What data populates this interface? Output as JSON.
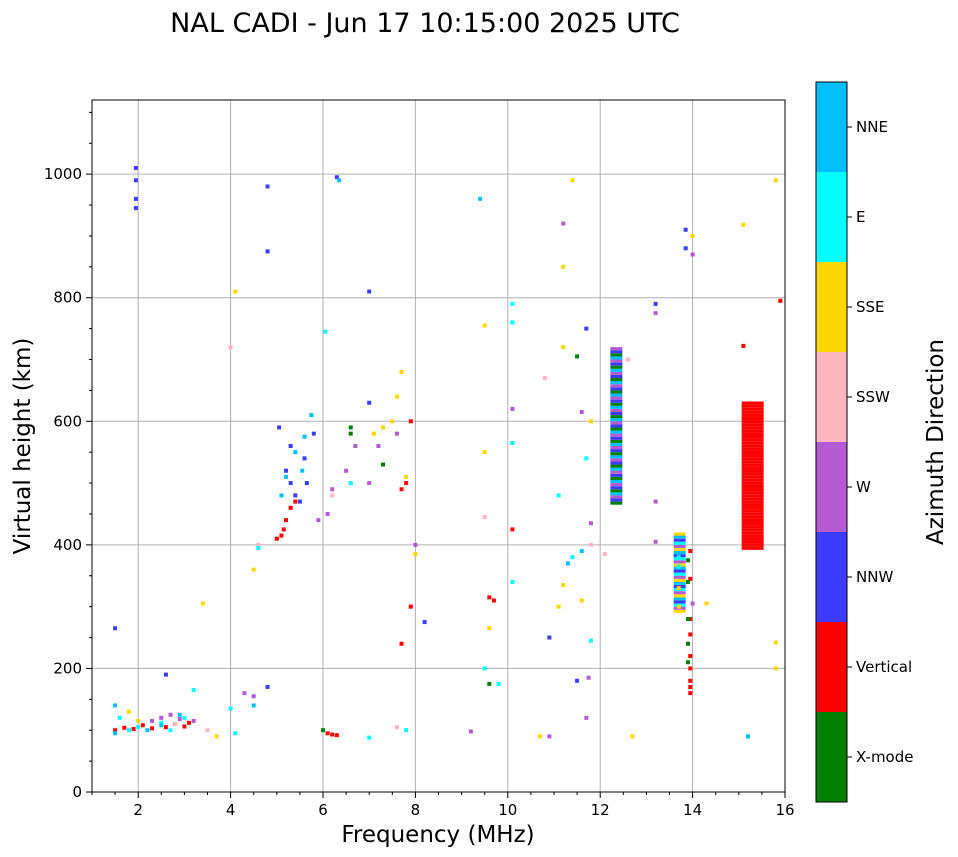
{
  "chart_data": {
    "type": "scatter",
    "title": "NAL CADI - Jun 17 10:15:00 2025 UTC",
    "xlabel": "Frequency (MHz)",
    "ylabel": "Virtual height (km)",
    "xlim": [
      1,
      16
    ],
    "ylim": [
      0,
      1120
    ],
    "xticks": [
      2,
      4,
      6,
      8,
      10,
      12,
      14,
      16
    ],
    "yticks": [
      0,
      200,
      400,
      600,
      800,
      1000
    ],
    "grid": true,
    "colorbar": {
      "label": "Azimuth Direction",
      "categories": [
        {
          "name": "X-mode",
          "color": "#008000"
        },
        {
          "name": "Vertical",
          "color": "#ff0000"
        },
        {
          "name": "NNW",
          "color": "#3c3cff"
        },
        {
          "name": "W",
          "color": "#b45ad2"
        },
        {
          "name": "SSW",
          "color": "#ffb6c1"
        },
        {
          "name": "SSE",
          "color": "#ffd700"
        },
        {
          "name": "E",
          "color": "#00ffff"
        },
        {
          "name": "NNE",
          "color": "#00bfff"
        }
      ]
    },
    "series": [
      {
        "name": "Vertical",
        "color": "#ff0000",
        "points": [
          [
            1.5,
            100
          ],
          [
            1.7,
            104
          ],
          [
            1.9,
            102
          ],
          [
            2.1,
            108
          ],
          [
            2.3,
            103
          ],
          [
            2.6,
            105
          ],
          [
            2.8,
            110
          ],
          [
            3.0,
            106
          ],
          [
            3.1,
            112
          ],
          [
            5.0,
            410
          ],
          [
            5.1,
            415
          ],
          [
            5.15,
            425
          ],
          [
            5.2,
            440
          ],
          [
            5.3,
            460
          ],
          [
            5.4,
            470
          ],
          [
            6.1,
            95
          ],
          [
            6.2,
            93
          ],
          [
            6.3,
            92
          ],
          [
            7.7,
            490
          ],
          [
            7.8,
            500
          ],
          [
            7.9,
            600
          ],
          [
            7.9,
            300
          ],
          [
            7.7,
            240
          ],
          [
            9.6,
            315
          ],
          [
            9.7,
            310
          ],
          [
            10.1,
            425
          ],
          [
            13.95,
            390
          ],
          [
            13.95,
            345
          ],
          [
            13.95,
            280
          ],
          [
            13.95,
            255
          ],
          [
            13.95,
            220
          ],
          [
            13.95,
            200
          ],
          [
            13.95,
            180
          ],
          [
            13.95,
            170
          ],
          [
            13.95,
            160
          ],
          [
            15.1,
            722
          ],
          [
            15.9,
            795
          ]
        ]
      },
      {
        "name": "X-mode",
        "color": "#008000",
        "points": [
          [
            6.0,
            100
          ],
          [
            6.6,
            590
          ],
          [
            6.6,
            580
          ],
          [
            7.3,
            530
          ],
          [
            9.6,
            175
          ],
          [
            11.5,
            705
          ],
          [
            13.9,
            375
          ],
          [
            13.9,
            340
          ],
          [
            13.9,
            280
          ],
          [
            13.9,
            240
          ],
          [
            13.9,
            210
          ]
        ]
      },
      {
        "name": "NNW",
        "color": "#3c3cff",
        "points": [
          [
            1.95,
            1010
          ],
          [
            1.95,
            990
          ],
          [
            1.95,
            960
          ],
          [
            1.95,
            945
          ],
          [
            1.5,
            265
          ],
          [
            2.6,
            190
          ],
          [
            4.8,
            170
          ],
          [
            4.8,
            980
          ],
          [
            4.8,
            875
          ],
          [
            5.05,
            590
          ],
          [
            5.3,
            560
          ],
          [
            5.2,
            520
          ],
          [
            5.3,
            500
          ],
          [
            5.4,
            480
          ],
          [
            5.5,
            470
          ],
          [
            5.65,
            500
          ],
          [
            5.6,
            540
          ],
          [
            5.8,
            580
          ],
          [
            6.3,
            995
          ],
          [
            7.0,
            630
          ],
          [
            7.0,
            810
          ],
          [
            8.2,
            275
          ],
          [
            10.9,
            250
          ],
          [
            11.5,
            180
          ],
          [
            11.7,
            750
          ],
          [
            13.85,
            910
          ],
          [
            13.85,
            880
          ],
          [
            13.2,
            790
          ]
        ]
      },
      {
        "name": "W",
        "color": "#b45ad2",
        "points": [
          [
            2.3,
            115
          ],
          [
            2.5,
            120
          ],
          [
            2.7,
            125
          ],
          [
            2.9,
            118
          ],
          [
            3.2,
            115
          ],
          [
            4.3,
            160
          ],
          [
            4.5,
            155
          ],
          [
            5.9,
            440
          ],
          [
            6.1,
            450
          ],
          [
            6.2,
            490
          ],
          [
            6.5,
            520
          ],
          [
            6.7,
            560
          ],
          [
            7.0,
            500
          ],
          [
            7.2,
            560
          ],
          [
            7.6,
            580
          ],
          [
            8.0,
            400
          ],
          [
            9.2,
            98
          ],
          [
            10.1,
            620
          ],
          [
            10.9,
            90
          ],
          [
            11.2,
            920
          ],
          [
            11.6,
            615
          ],
          [
            11.75,
            185
          ],
          [
            11.7,
            120
          ],
          [
            11.8,
            435
          ],
          [
            13.2,
            470
          ],
          [
            13.2,
            405
          ],
          [
            13.2,
            775
          ],
          [
            14.0,
            870
          ],
          [
            14.0,
            305
          ]
        ]
      },
      {
        "name": "SSW",
        "color": "#ffb6c1",
        "points": [
          [
            2.8,
            110
          ],
          [
            3.5,
            100
          ],
          [
            4.0,
            720
          ],
          [
            4.6,
            400
          ],
          [
            6.2,
            480
          ],
          [
            7.6,
            105
          ],
          [
            9.5,
            445
          ],
          [
            10.8,
            670
          ],
          [
            11.8,
            400
          ],
          [
            12.1,
            385
          ],
          [
            12.6,
            700
          ]
        ]
      },
      {
        "name": "SSE",
        "color": "#ffd700",
        "points": [
          [
            1.8,
            130
          ],
          [
            2.0,
            115
          ],
          [
            3.4,
            305
          ],
          [
            3.7,
            90
          ],
          [
            4.1,
            810
          ],
          [
            4.5,
            360
          ],
          [
            7.1,
            580
          ],
          [
            7.3,
            590
          ],
          [
            7.5,
            600
          ],
          [
            7.6,
            640
          ],
          [
            7.8,
            510
          ],
          [
            7.7,
            680
          ],
          [
            8.0,
            385
          ],
          [
            9.5,
            550
          ],
          [
            9.5,
            755
          ],
          [
            9.6,
            265
          ],
          [
            10.7,
            90
          ],
          [
            11.1,
            300
          ],
          [
            11.2,
            335
          ],
          [
            11.2,
            720
          ],
          [
            11.2,
            850
          ],
          [
            11.4,
            990
          ],
          [
            11.6,
            310
          ],
          [
            11.8,
            600
          ],
          [
            12.7,
            90
          ],
          [
            13.7,
            300
          ],
          [
            13.7,
            330
          ],
          [
            14.0,
            900
          ],
          [
            14.3,
            305
          ],
          [
            15.1,
            918
          ],
          [
            15.8,
            990
          ],
          [
            15.8,
            242
          ],
          [
            15.8,
            200
          ]
        ]
      },
      {
        "name": "E",
        "color": "#00ffff",
        "points": [
          [
            1.6,
            120
          ],
          [
            1.8,
            100
          ],
          [
            2.0,
            105
          ],
          [
            2.5,
            112
          ],
          [
            2.7,
            100
          ],
          [
            3.0,
            120
          ],
          [
            3.2,
            165
          ],
          [
            4.0,
            135
          ],
          [
            4.1,
            95
          ],
          [
            4.6,
            395
          ],
          [
            6.05,
            745
          ],
          [
            6.6,
            500
          ],
          [
            7.0,
            88
          ],
          [
            7.8,
            100
          ],
          [
            9.5,
            200
          ],
          [
            9.8,
            175
          ],
          [
            10.1,
            790
          ],
          [
            10.1,
            760
          ],
          [
            10.1,
            565
          ],
          [
            10.1,
            340
          ],
          [
            11.1,
            480
          ],
          [
            11.4,
            380
          ],
          [
            11.7,
            540
          ],
          [
            11.8,
            245
          ],
          [
            13.7,
            380
          ],
          [
            13.7,
            365
          ],
          [
            15.2,
            90
          ]
        ]
      },
      {
        "name": "NNE",
        "color": "#00bfff",
        "points": [
          [
            1.5,
            140
          ],
          [
            1.5,
            95
          ],
          [
            2.2,
            100
          ],
          [
            2.5,
            108
          ],
          [
            2.9,
            125
          ],
          [
            4.5,
            140
          ],
          [
            5.1,
            480
          ],
          [
            5.2,
            510
          ],
          [
            5.4,
            550
          ],
          [
            5.55,
            520
          ],
          [
            5.6,
            575
          ],
          [
            5.75,
            610
          ],
          [
            6.35,
            990
          ],
          [
            9.4,
            960
          ],
          [
            11.3,
            370
          ],
          [
            11.6,
            390
          ],
          [
            13.7,
            385
          ],
          [
            15.2,
            90
          ]
        ]
      }
    ],
    "bands": [
      {
        "x": 12.35,
        "ymin": 465,
        "ymax": 720,
        "colors": [
          "#008000",
          "#3c3cff",
          "#b45ad2",
          "#00bfff"
        ]
      },
      {
        "x": 13.72,
        "ymin": 290,
        "ymax": 420,
        "colors": [
          "#ffd700",
          "#b45ad2",
          "#00ffff",
          "#3c3cff",
          "#00bfff"
        ]
      },
      {
        "x": 15.3,
        "ymin": 392,
        "ymax": 628,
        "colors": [
          "#ff0000"
        ]
      }
    ]
  }
}
